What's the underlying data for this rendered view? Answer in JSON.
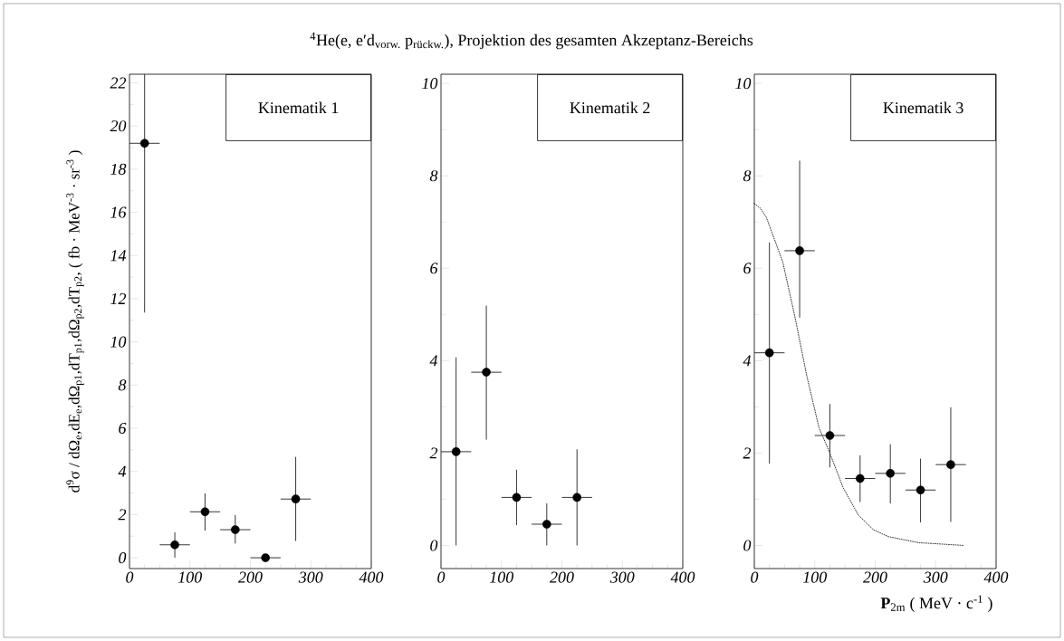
{
  "chart_data": [
    {
      "type": "scatter",
      "title": "$^{4}$He(e, e′d$_{vorw.}$ p$_{rückw.}$),  Projektion des gesamten Akzeptanz-Bereichs",
      "subtitle": "Kinematik 1",
      "ylabel": "d$^{9}$σ / dΩ$_{e}$,dE$_{e}$,dΩ$_{p1}$,dT$_{p1}$,dΩ$_{p2}$,dT$_{p2}$,   ( fb · MeV$^{-3}$ · sr$^{-3}$ )",
      "xlim": [
        0,
        400
      ],
      "xticks": [
        0,
        100,
        200,
        300,
        400
      ],
      "ylim": [
        -0.5,
        22.4
      ],
      "yticks": [
        0,
        2,
        4,
        6,
        8,
        10,
        12,
        14,
        16,
        18,
        20,
        22
      ],
      "series": [
        {
          "color": "#000000",
          "marker": "circle",
          "x": [
            25,
            75,
            125,
            175,
            225,
            275
          ],
          "values": [
            19.2,
            0.6,
            2.13,
            1.3,
            0,
            2.72
          ],
          "errors": [
            [
              11.36,
              22.4
            ],
            [
              0,
              1.18
            ],
            [
              1.26,
              2.98
            ],
            [
              0.66,
              1.98
            ],
            null,
            [
              0.78,
              4.67
            ]
          ],
          "xerrors": [
            25,
            25,
            25,
            25,
            25,
            25
          ]
        }
      ]
    },
    {
      "type": "scatter",
      "subtitle": "Kinematik 2",
      "xlim": [
        0,
        400
      ],
      "xticks": [
        0,
        100,
        200,
        300,
        400
      ],
      "ylim": [
        -0.5,
        10.2
      ],
      "yticks": [
        0,
        2,
        4,
        6,
        8,
        10
      ],
      "series": [
        {
          "color": "#000000",
          "marker": "circle",
          "x": [
            25,
            75,
            125,
            175,
            225
          ],
          "values": [
            2.03,
            3.75,
            1.04,
            0.46,
            1.04
          ],
          "errors": [
            [
              0,
              4.07
            ],
            [
              2.29,
              5.19
            ],
            [
              0.44,
              1.64
            ],
            [
              0,
              0.91
            ],
            [
              0,
              2.08
            ]
          ],
          "xerrors": [
            25,
            25,
            25,
            25,
            25
          ]
        }
      ]
    },
    {
      "type": "scatter",
      "subtitle": "Kinematik 3",
      "xlabel": "**P**$_{2m}$   ( MeV · c$^{-1}$ )",
      "xlim": [
        0,
        400
      ],
      "xticks": [
        0,
        100,
        200,
        300,
        400
      ],
      "ylim": [
        -0.5,
        10.2
      ],
      "yticks": [
        0,
        2,
        4,
        6,
        8,
        10
      ],
      "series": [
        {
          "type": "line",
          "color": "#000000",
          "marker": "none",
          "line_style": "dotted",
          "x": [
            0,
            10,
            20,
            47,
            67,
            87,
            107,
            124,
            147,
            172,
            197,
            222,
            272,
            347
          ],
          "values": [
            7.4,
            7.3,
            7.1,
            6.14,
            4.96,
            3.66,
            2.55,
            2.03,
            1.25,
            0.66,
            0.34,
            0.19,
            0.06,
            0
          ]
        },
        {
          "color": "#000000",
          "marker": "circle",
          "x": [
            25,
            75,
            125,
            175,
            225,
            275,
            325
          ],
          "values": [
            4.17,
            6.38,
            2.38,
            1.45,
            1.56,
            1.2,
            1.75
          ],
          "errors": [
            [
              1.77,
              6.56
            ],
            [
              4.93,
              8.33
            ],
            [
              1.69,
              3.06
            ],
            [
              0.94,
              1.95
            ],
            [
              0.91,
              2.19
            ],
            [
              0.5,
              1.88
            ],
            [
              0.51,
              2.99
            ]
          ],
          "xerrors": [
            25,
            25,
            25,
            25,
            25,
            25,
            25
          ]
        }
      ]
    }
  ]
}
